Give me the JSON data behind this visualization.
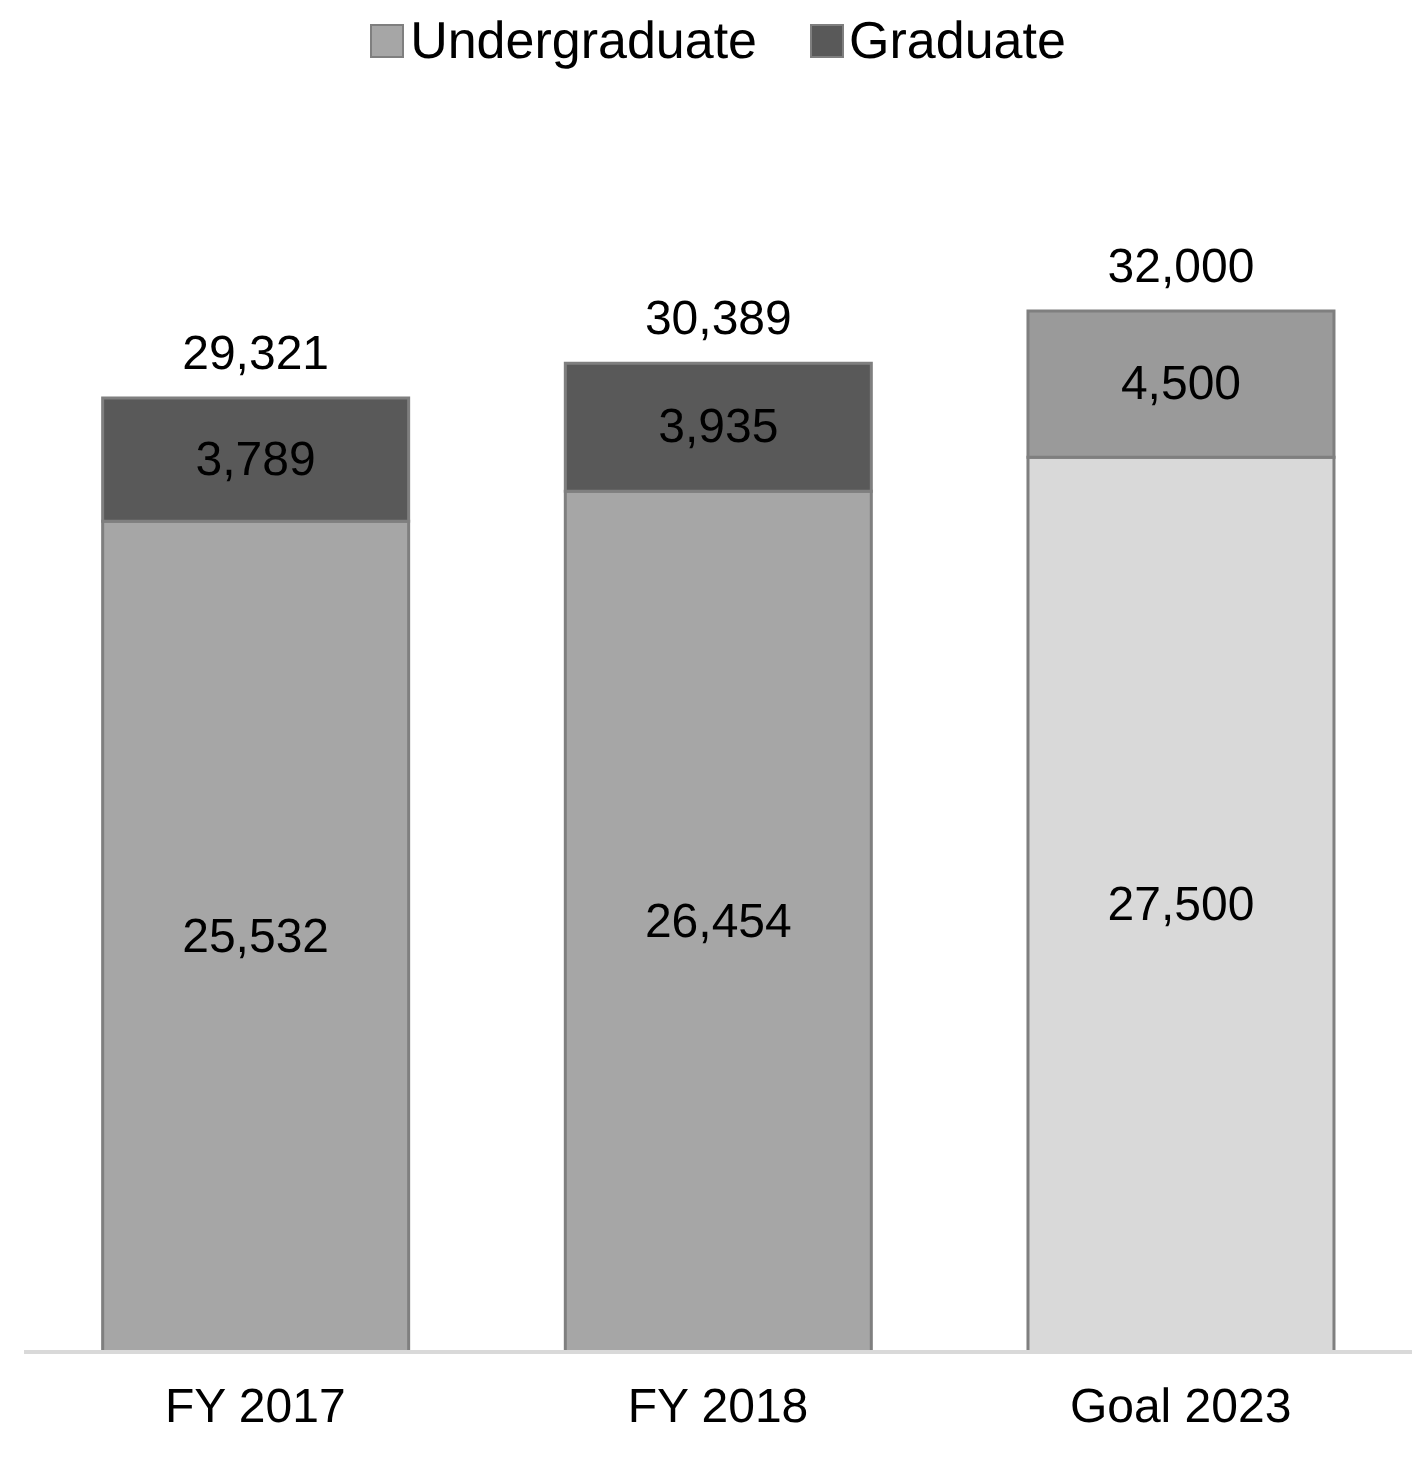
{
  "chart_data": {
    "type": "bar",
    "stacked": true,
    "categories": [
      "FY 2017",
      "FY 2018",
      "Goal 2023"
    ],
    "series": [
      {
        "name": "Undergraduate",
        "color": "#a6a6a6",
        "colors": [
          "#a6a6a6",
          "#a6a6a6",
          "#d9d9d9"
        ],
        "values": [
          25532,
          26454,
          27500
        ],
        "value_labels": [
          "25,532",
          "26,454",
          "27,500"
        ]
      },
      {
        "name": "Graduate",
        "color": "#595959",
        "colors": [
          "#595959",
          "#595959",
          "#9a9a9a"
        ],
        "values": [
          3789,
          3935,
          4500
        ],
        "value_labels": [
          "3,789",
          "3,935",
          "4,500"
        ]
      }
    ],
    "totals": [
      "29,321",
      "30,389",
      "32,000"
    ],
    "legend": "top",
    "grid": false
  }
}
